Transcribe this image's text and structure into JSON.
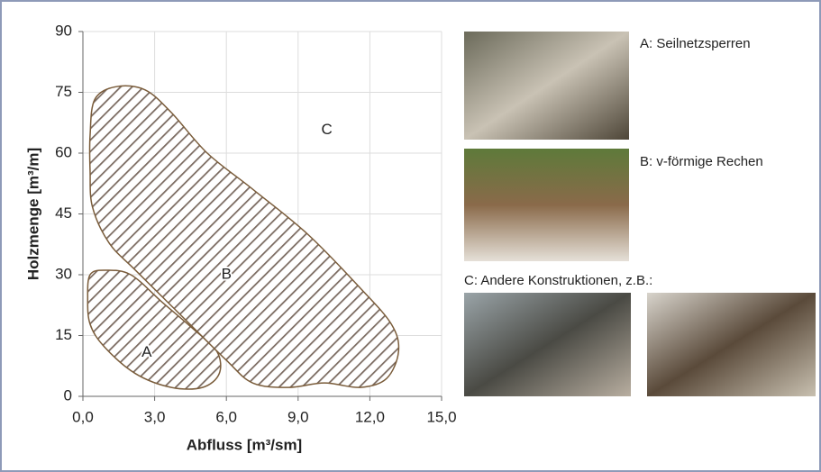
{
  "chart_data": {
    "type": "region",
    "xlabel": "Abfluss [m³/sm]",
    "ylabel": "Holzmenge [m³/m]",
    "xlim": [
      0,
      15
    ],
    "ylim": [
      0,
      90
    ],
    "xticks": [
      {
        "value": 0,
        "label": "0,0"
      },
      {
        "value": 3,
        "label": "3,0"
      },
      {
        "value": 6,
        "label": "6,0"
      },
      {
        "value": 9,
        "label": "9,0"
      },
      {
        "value": 12,
        "label": "12,0"
      },
      {
        "value": 15,
        "label": "15,0"
      }
    ],
    "yticks": [
      0,
      15,
      30,
      45,
      60,
      75,
      90
    ],
    "grid": true,
    "series": [
      {
        "name": "A",
        "color": "#7a5c3a",
        "x": [
          0.3,
          0.9,
          2.0,
          3.3,
          4.6,
          5.6,
          5.7,
          5.0,
          3.7,
          2.2,
          0.9,
          0.3,
          0.2
        ],
        "y": [
          30.0,
          31.1,
          30.0,
          23.3,
          16.7,
          11.1,
          5.6,
          2.2,
          2.2,
          5.6,
          12.2,
          17.8,
          24.4
        ]
      },
      {
        "name": "B",
        "color": "#7a5c3a",
        "x": [
          0.3,
          0.5,
          1.4,
          2.6,
          3.7,
          5.2,
          7.1,
          9.4,
          11.6,
          12.9,
          13.2,
          12.7,
          11.6,
          10.1,
          8.6,
          7.1,
          6.0,
          4.1,
          2.2,
          1.1,
          0.4,
          0.3
        ],
        "y": [
          64.4,
          73.3,
          76.4,
          75.6,
          70.0,
          60.0,
          51.1,
          40.0,
          26.7,
          17.8,
          11.1,
          4.4,
          2.2,
          3.3,
          2.2,
          3.3,
          8.9,
          20.0,
          31.1,
          37.8,
          46.7,
          55.6
        ]
      }
    ],
    "annotations": [
      "C"
    ]
  },
  "photos": {
    "a": "A: Seilnetzsperren",
    "b": "B: v-förmige Rechen",
    "c": "C: Andere Konstruktionen, z.B.:"
  }
}
